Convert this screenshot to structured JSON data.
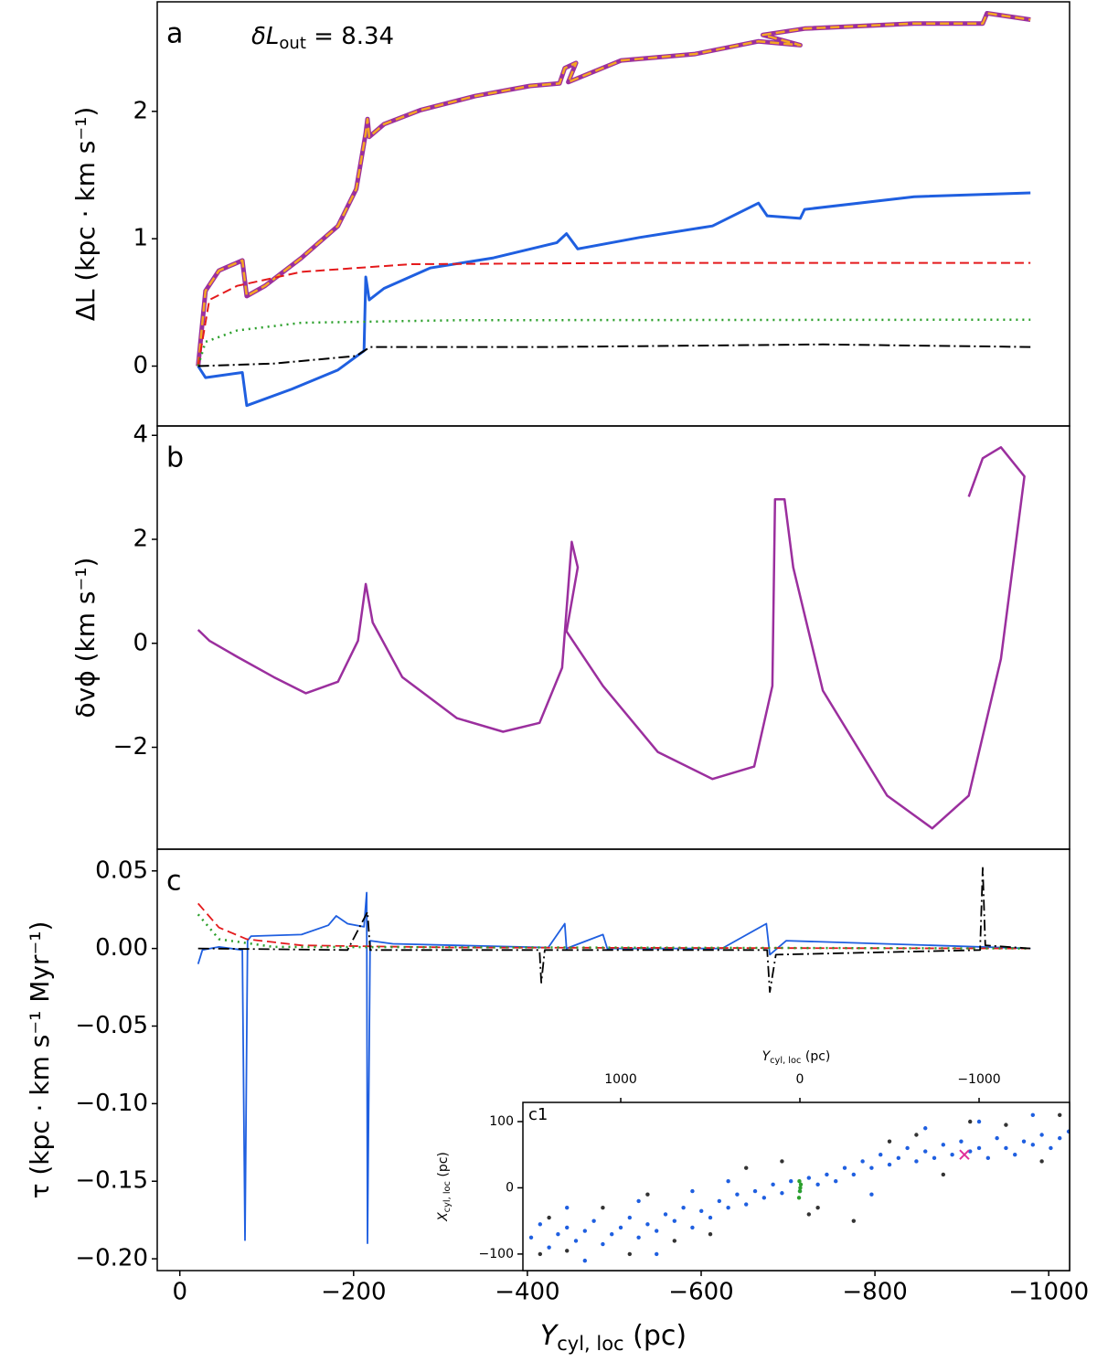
{
  "chart_data": [
    {
      "type": "line",
      "label": "a",
      "annotation": [
        "δL",
        "out",
        " = 8.34"
      ],
      "y_label": "ΔL (kpc · km s⁻¹)",
      "xlim": [
        26,
        -1024
      ],
      "ylim": [
        -0.47,
        2.86
      ],
      "yticks": [
        0,
        1,
        2
      ],
      "series": [
        {
          "color": "#9b2f9e",
          "width": 5,
          "dash": "solid",
          "x": [
            -21,
            -29.5,
            -45,
            -72,
            -77,
            -98,
            -140,
            -182,
            -203,
            -214,
            -216,
            -218,
            -235,
            -277,
            -340,
            -403,
            -437,
            -443,
            -456,
            -447,
            -508,
            -593,
            -666,
            -714,
            -671,
            -719,
            -845,
            -924,
            -929,
            -979
          ],
          "values": [
            0,
            0.59,
            0.75,
            0.83,
            0.55,
            0.63,
            0.85,
            1.1,
            1.39,
            1.83,
            1.94,
            1.8,
            1.9,
            2.01,
            2.12,
            2.2,
            2.22,
            2.34,
            2.38,
            2.23,
            2.4,
            2.45,
            2.55,
            2.52,
            2.6,
            2.65,
            2.69,
            2.69,
            2.77,
            2.72
          ]
        },
        {
          "color": "#f5a623",
          "width": 2.5,
          "dash": "dashed",
          "x": [
            -21,
            -29.5,
            -45,
            -72,
            -77,
            -98,
            -140,
            -182,
            -203,
            -214,
            -216,
            -218,
            -235,
            -277,
            -340,
            -403,
            -437,
            -443,
            -456,
            -447,
            -508,
            -593,
            -666,
            -714,
            -671,
            -719,
            -845,
            -924,
            -929,
            -979
          ],
          "values": [
            0,
            0.59,
            0.75,
            0.83,
            0.55,
            0.63,
            0.85,
            1.1,
            1.39,
            1.83,
            1.94,
            1.8,
            1.9,
            2.01,
            2.12,
            2.2,
            2.22,
            2.34,
            2.38,
            2.23,
            2.4,
            2.45,
            2.55,
            2.52,
            2.6,
            2.65,
            2.69,
            2.69,
            2.77,
            2.72
          ]
        },
        {
          "color": "#1f5fe0",
          "width": 3,
          "dash": "solid",
          "x": [
            -21,
            -29.5,
            -72,
            -77,
            -129,
            -182,
            -212,
            -214,
            -218,
            -235,
            -288,
            -361,
            -434,
            -445,
            -458,
            -529,
            -613,
            -666,
            -676,
            -714,
            -719,
            -845,
            -979
          ],
          "values": [
            0,
            -0.09,
            -0.05,
            -0.31,
            -0.18,
            -0.03,
            0.12,
            0.7,
            0.52,
            0.61,
            0.77,
            0.85,
            0.97,
            1.04,
            0.92,
            1.01,
            1.1,
            1.28,
            1.18,
            1.16,
            1.23,
            1.33,
            1.36
          ]
        },
        {
          "color": "#e41a1c",
          "width": 2,
          "dash": "dashed",
          "x": [
            -21,
            -34,
            -66,
            -140,
            -266,
            -529,
            -979
          ],
          "values": [
            0,
            0.52,
            0.63,
            0.74,
            0.8,
            0.81,
            0.81
          ]
        },
        {
          "color": "#2ca02c",
          "width": 2.5,
          "dash": "dotted",
          "x": [
            -21,
            -29.5,
            -66,
            -140,
            -319,
            -979
          ],
          "values": [
            0,
            0.19,
            0.28,
            0.34,
            0.36,
            0.365
          ]
        },
        {
          "color": "#000000",
          "width": 2,
          "dash": "dashdot",
          "x": [
            -21,
            -108,
            -203,
            -219,
            -424,
            -740,
            -979
          ],
          "values": [
            0,
            0.02,
            0.08,
            0.15,
            0.15,
            0.17,
            0.15
          ]
        }
      ]
    },
    {
      "type": "line",
      "label": "b",
      "y_label": "δvϕ (km s⁻¹)",
      "xlim": [
        26,
        -1024
      ],
      "ylim": [
        -3.96,
        4.18
      ],
      "yticks": [
        {
          "value": -2,
          "label": "−2"
        },
        0,
        2,
        4
      ],
      "series": [
        {
          "color": "#9b2f9e",
          "width": 2.5,
          "dash": "solid",
          "x": [
            -21,
            -34,
            -66,
            -108,
            -145,
            -182,
            -205,
            -214,
            -222,
            -256,
            -319,
            -372,
            -414,
            -440,
            -451,
            -458,
            -445,
            -487,
            -550,
            -613,
            -661,
            -682,
            -685,
            -696,
            -706,
            -740,
            -814,
            -866,
            -908,
            -945,
            -972,
            -945,
            -924,
            -908
          ],
          "values": [
            0.26,
            0.05,
            -0.26,
            -0.65,
            -0.96,
            -0.74,
            0.05,
            1.14,
            0.4,
            -0.65,
            -1.44,
            -1.7,
            -1.53,
            -0.47,
            1.95,
            1.46,
            0.23,
            -0.82,
            -2.09,
            -2.61,
            -2.37,
            -0.82,
            2.77,
            2.77,
            1.46,
            -0.91,
            -2.93,
            -3.56,
            -2.93,
            -0.3,
            3.21,
            3.77,
            3.56,
            2.82
          ]
        }
      ]
    },
    {
      "type": "line",
      "label": "c",
      "y_label": "τ (kpc · km s⁻¹ Myr⁻¹)",
      "x_label": [
        "Y",
        "cyl, loc",
        " (pc)"
      ],
      "xlim": [
        26,
        -1024
      ],
      "ylim": [
        -0.2076,
        0.064
      ],
      "xticks": [
        0,
        {
          "value": -200,
          "label": "−200"
        },
        {
          "value": -400,
          "label": "−400"
        },
        {
          "value": -600,
          "label": "−600"
        },
        {
          "value": -800,
          "label": "−800"
        },
        {
          "value": -1000,
          "label": "−1000"
        }
      ],
      "yticks": [
        0.05,
        {
          "value": 0,
          "label": "0.00"
        },
        {
          "value": -0.05,
          "label": "−0.05"
        },
        {
          "value": -0.1,
          "label": "−0.10"
        },
        {
          "value": -0.15,
          "label": "−0.15"
        },
        {
          "value": -0.2,
          "label": "−0.20"
        }
      ],
      "series": [
        {
          "color": "#1f5fe0",
          "width": 1.8,
          "dash": "solid",
          "x": [
            -21,
            -26,
            -45,
            -72,
            -75,
            -78,
            -82,
            -140,
            -171,
            -180,
            -193,
            -212,
            -215,
            -216,
            -219,
            -245,
            -424,
            -443,
            -445,
            -487,
            -492,
            -624,
            -675,
            -679,
            -698,
            -979
          ],
          "values": [
            -0.01,
            -0.001,
            0.001,
            -0.001,
            -0.188,
            0.005,
            0.008,
            0.009,
            0.015,
            0.021,
            0.016,
            0.014,
            0.036,
            -0.19,
            0.005,
            0.003,
            0.0006,
            0.016,
            0,
            0.009,
            0,
            0,
            0.016,
            -0.004,
            0.005,
            0
          ]
        },
        {
          "color": "#e41a1c",
          "width": 1.8,
          "dash": "dashed",
          "x": [
            -21,
            -45,
            -77,
            -140,
            -319,
            -979
          ],
          "values": [
            0.029,
            0.0135,
            0.006,
            0.002,
            0.0006,
            0
          ]
        },
        {
          "color": "#2ca02c",
          "width": 2.5,
          "dash": "dotted",
          "x": [
            -21,
            -45,
            -108,
            -979
          ],
          "values": [
            0.022,
            0.006,
            0.001,
            0
          ]
        },
        {
          "color": "#000000",
          "width": 1.8,
          "dash": "dashdot",
          "x": [
            -21,
            -193,
            -216,
            -219,
            -414,
            -416,
            -420,
            -676,
            -679,
            -686,
            -921,
            -924,
            -927,
            -979
          ],
          "values": [
            0,
            -0.001,
            0.0235,
            -0.001,
            -0.001,
            -0.022,
            -0.001,
            -0.001,
            -0.028,
            -0.004,
            -0.001,
            0.052,
            0.002,
            0
          ]
        }
      ]
    },
    {
      "type": "scatter",
      "label": "c1",
      "x_label": [
        "Y",
        "cyl, loc",
        " (pc)"
      ],
      "y_label": [
        "X",
        "cyl, loc",
        " (pc)"
      ],
      "xlim": [
        1546,
        -1505
      ],
      "ylim": [
        -125,
        129
      ],
      "xticks": [
        1000,
        0,
        {
          "value": -1000,
          "label": "−1000"
        }
      ],
      "yticks": [
        100,
        0,
        {
          "value": -100,
          "label": "−100"
        }
      ],
      "series": [
        {
          "color": "#333333",
          "x": [
            1450,
            1300,
            1100,
            950,
            700,
            500,
            300,
            100,
            -50,
            -100,
            -300,
            -500,
            -650,
            -800,
            -950,
            -1150,
            -1350,
            -1450,
            1400,
            850
          ],
          "values": [
            -100,
            -95,
            -30,
            -100,
            -80,
            -70,
            30,
            40,
            -40,
            -30,
            -50,
            70,
            80,
            20,
            100,
            95,
            40,
            110,
            -45,
            -10
          ]
        },
        {
          "color": "#1f5fe0",
          "x": [
            1500,
            1450,
            1400,
            1350,
            1300,
            1250,
            1200,
            1150,
            1100,
            1050,
            1000,
            950,
            900,
            850,
            800,
            750,
            700,
            650,
            600,
            550,
            500,
            450,
            400,
            350,
            300,
            250,
            200,
            150,
            100,
            50,
            0,
            -50,
            -100,
            -150,
            -200,
            -250,
            -300,
            -350,
            -400,
            -450,
            -500,
            -550,
            -600,
            -650,
            -700,
            -750,
            -800,
            -850,
            -900,
            -950,
            -1000,
            -1050,
            -1100,
            -1150,
            -1200,
            -1250,
            -1300,
            -1350,
            -1400,
            -1450,
            -1500,
            1300,
            900,
            600,
            400,
            -400,
            -700,
            -1000,
            -1300,
            1200,
            800
          ],
          "values": [
            -75,
            -55,
            -90,
            -70,
            -60,
            -80,
            -65,
            -50,
            -85,
            -70,
            -60,
            -45,
            -75,
            -55,
            -65,
            -40,
            -50,
            -30,
            -60,
            -35,
            -45,
            -20,
            -30,
            -10,
            -25,
            -5,
            -15,
            5,
            -8,
            10,
            -5,
            15,
            5,
            20,
            10,
            30,
            20,
            40,
            30,
            50,
            35,
            45,
            60,
            40,
            55,
            45,
            65,
            50,
            70,
            55,
            60,
            45,
            75,
            60,
            50,
            70,
            65,
            80,
            60,
            75,
            85,
            -30,
            -20,
            -5,
            10,
            -10,
            90,
            100,
            110,
            -110,
            -100
          ]
        },
        {
          "color": "#2ca02c",
          "x": [
            5,
            0,
            -5,
            3,
            -2
          ],
          "values": [
            -15,
            -5,
            5,
            10,
            0
          ]
        },
        {
          "color": "#e0309a",
          "marker": "x",
          "x": [
            -918
          ],
          "values": [
            50
          ]
        }
      ]
    }
  ]
}
